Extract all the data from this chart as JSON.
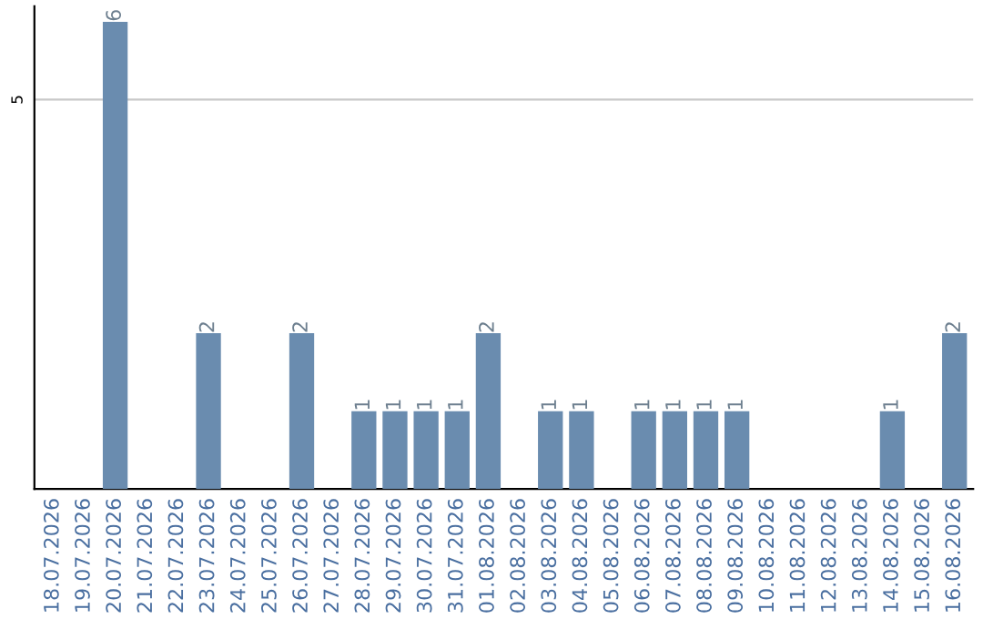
{
  "chart_data": {
    "type": "bar",
    "categories": [
      "18.07.2026",
      "19.07.2026",
      "20.07.2026",
      "21.07.2026",
      "22.07.2026",
      "23.07.2026",
      "24.07.2026",
      "25.07.2026",
      "26.07.2026",
      "27.07.2026",
      "28.07.2026",
      "29.07.2026",
      "30.07.2026",
      "31.07.2026",
      "01.08.2026",
      "02.08.2026",
      "03.08.2026",
      "04.08.2026",
      "05.08.2026",
      "06.08.2026",
      "07.08.2026",
      "08.08.2026",
      "09.08.2026",
      "10.08.2026",
      "11.08.2026",
      "12.08.2026",
      "13.08.2026",
      "14.08.2026",
      "15.08.2026",
      "16.08.2026"
    ],
    "values": [
      0,
      0,
      6,
      0,
      0,
      2,
      0,
      0,
      2,
      0,
      1,
      1,
      1,
      1,
      2,
      0,
      1,
      1,
      0,
      1,
      1,
      1,
      1,
      0,
      0,
      0,
      0,
      1,
      0,
      2
    ],
    "value_labels": [
      null,
      null,
      "6",
      null,
      null,
      "2",
      null,
      null,
      "2",
      null,
      "1",
      "1",
      "1",
      "1",
      "2",
      null,
      "1",
      "1",
      null,
      "1",
      "1",
      "1",
      "1",
      null,
      null,
      null,
      null,
      "1",
      null,
      "2"
    ],
    "color": "#6a8caf",
    "ylim": [
      0,
      6.2
    ],
    "yticks": [
      5
    ],
    "grid": "y"
  }
}
